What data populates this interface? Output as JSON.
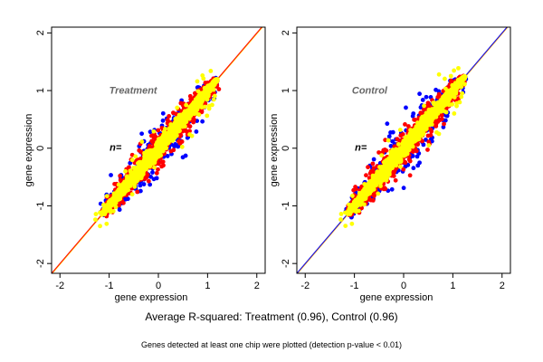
{
  "chart_data": [
    {
      "type": "scatter",
      "title": "Treatment",
      "annotation": "n=",
      "xlabel": "gene expression",
      "ylabel": "gene expression",
      "xlim": [
        -2.17,
        2.17
      ],
      "ylim": [
        -2.17,
        2.1
      ],
      "xticks": [
        -2,
        -1,
        0,
        1,
        2
      ],
      "yticks": [
        -2,
        -1,
        0,
        1,
        2
      ],
      "point_range": [
        -1.15,
        1.2
      ],
      "series_colors": [
        "#0000ff",
        "#ff0000",
        "#ffff00"
      ],
      "reference_line_colors": [
        "#ff0000",
        "#ffcc00"
      ],
      "grid": false
    },
    {
      "type": "scatter",
      "title": "Control",
      "annotation": "n=",
      "xlabel": "gene expression",
      "ylabel": "gene expression",
      "xlim": [
        -2.17,
        2.17
      ],
      "ylim": [
        -2.17,
        2.1
      ],
      "xticks": [
        -2,
        -1,
        0,
        1,
        2
      ],
      "yticks": [
        -2,
        -1,
        0,
        1,
        2
      ],
      "point_range": [
        -1.15,
        1.25
      ],
      "series_colors": [
        "#0000ff",
        "#ff0000",
        "#ffff00"
      ],
      "reference_line_colors": [
        "#0000ff",
        "#ffaa00"
      ],
      "grid": false
    }
  ],
  "caption": "Average R-squared: Treatment (0.96), Control (0.96)",
  "subcaption": "Genes detected at least one chip were plotted (detection p-value < 0.01)"
}
